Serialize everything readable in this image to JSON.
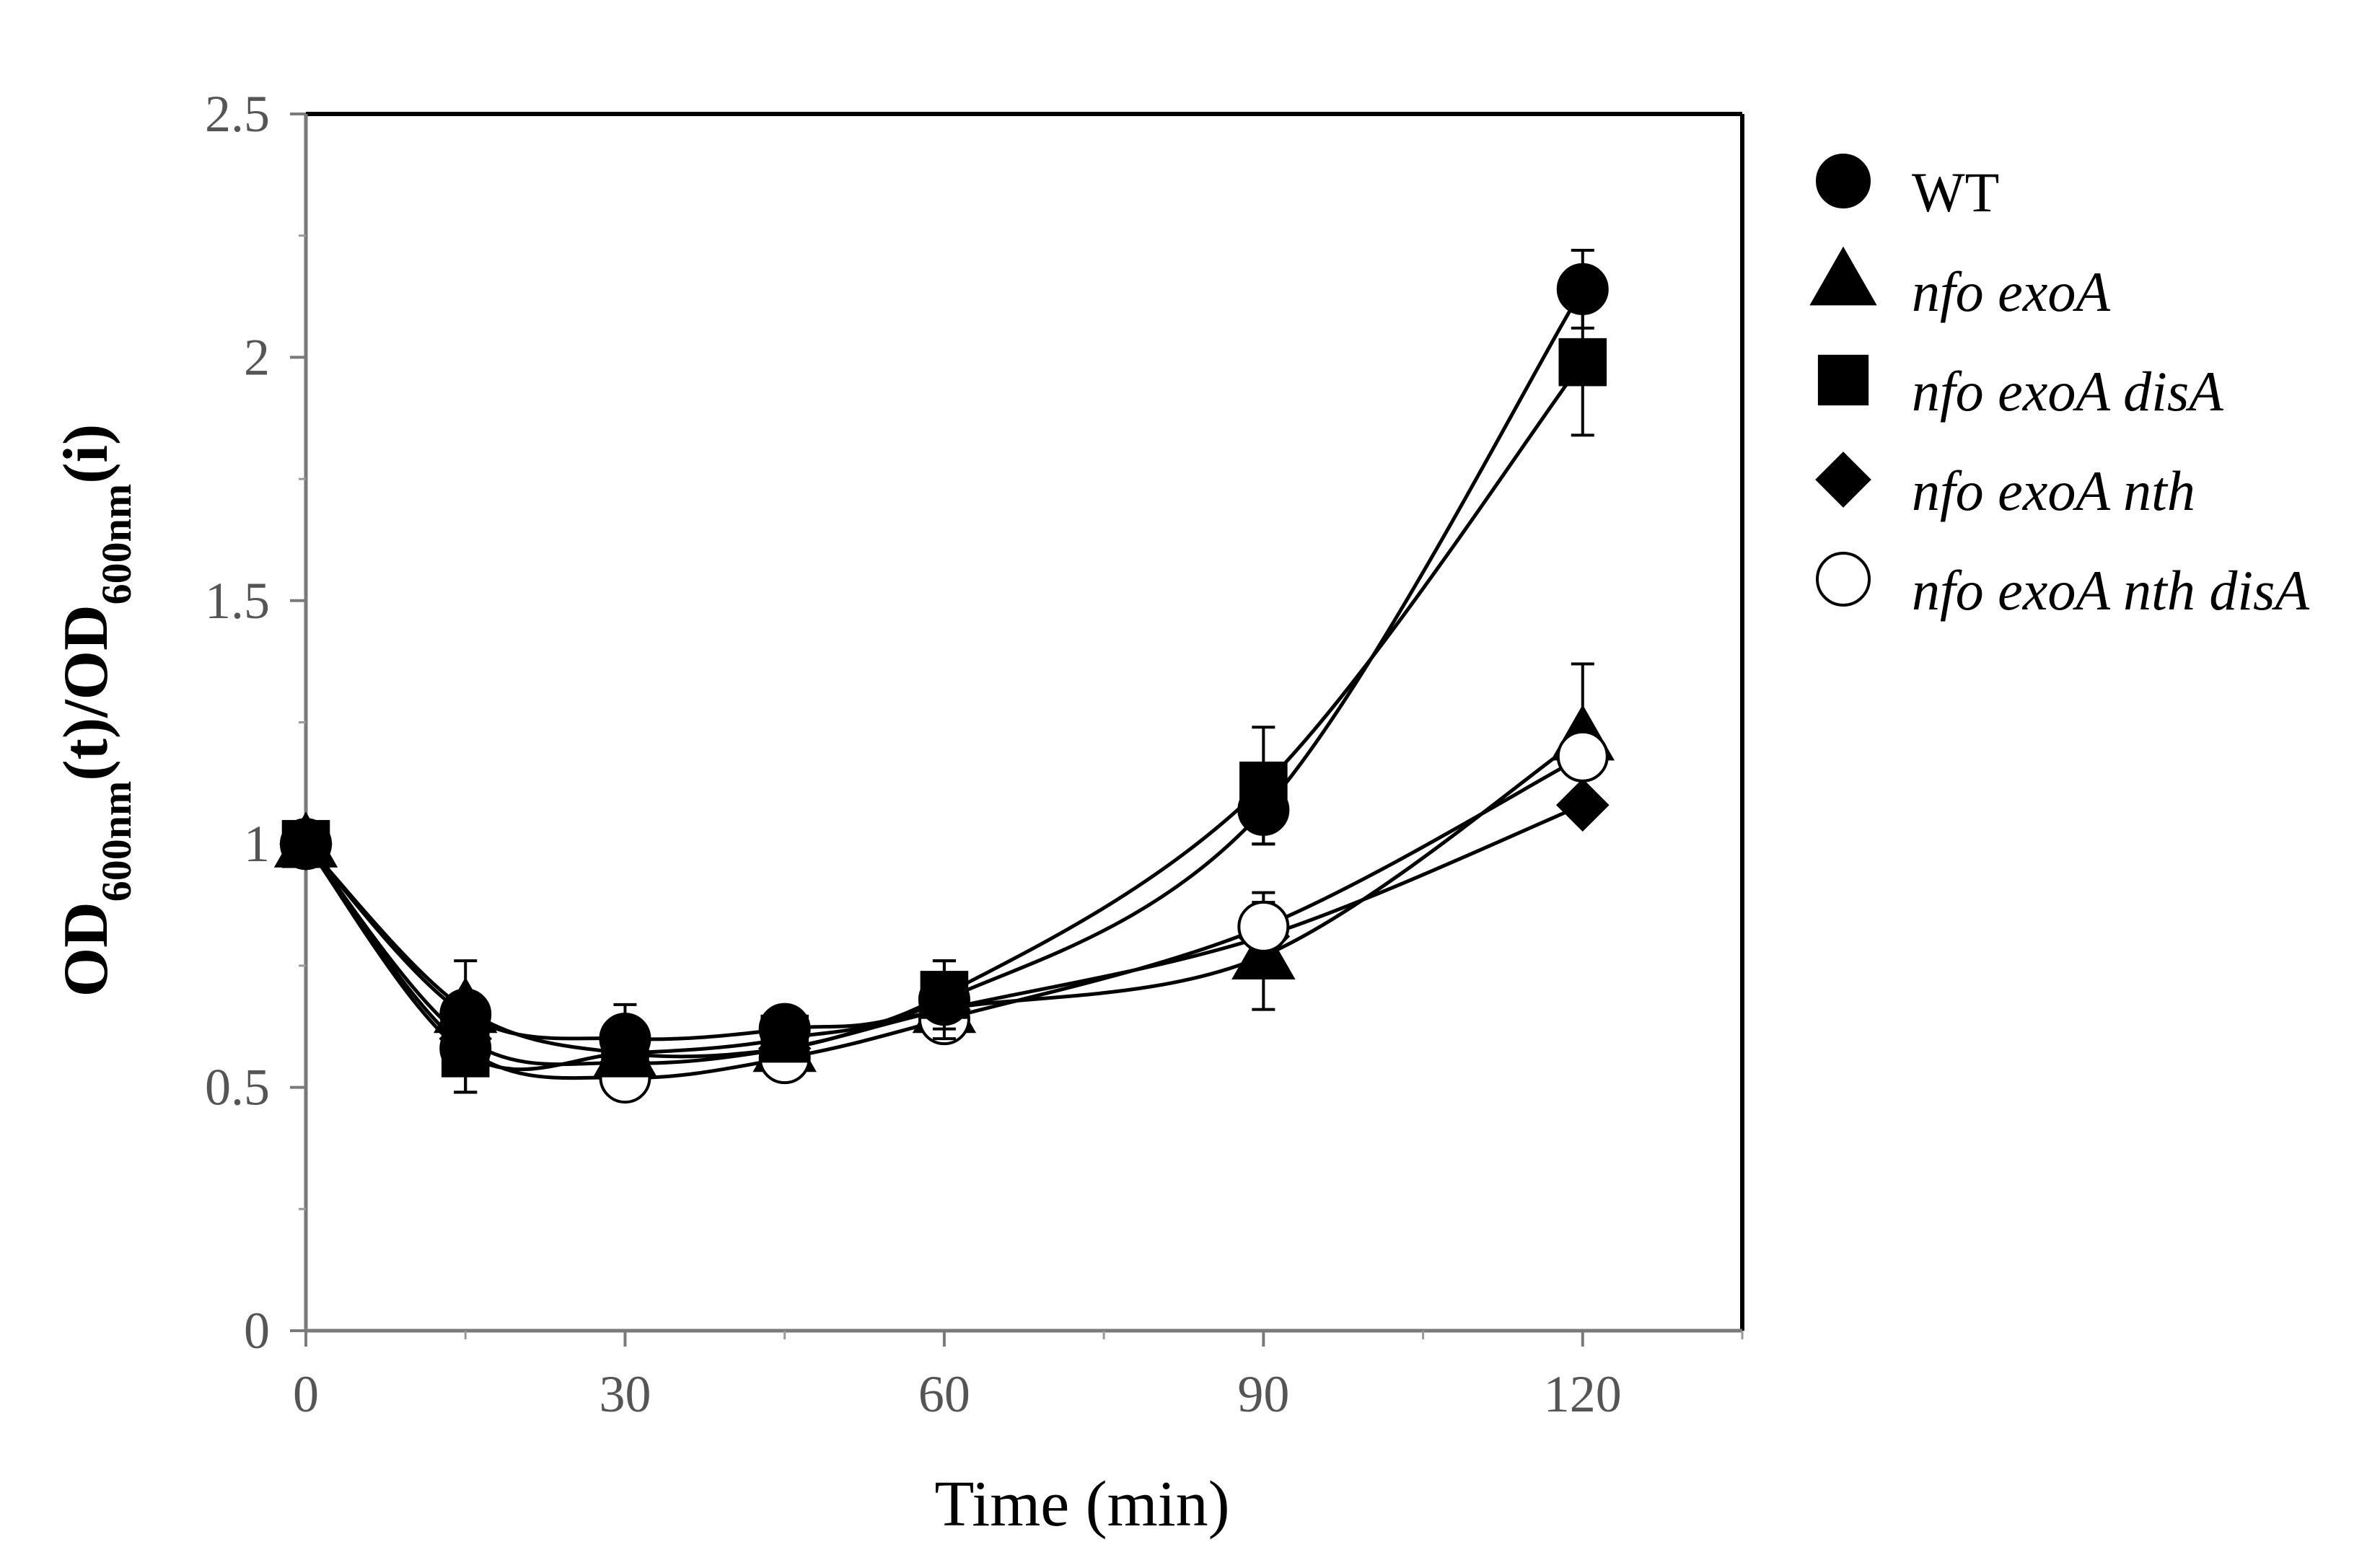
{
  "chart_data": {
    "type": "line",
    "title": "",
    "xlabel": "Time (min)",
    "ylabel": {
      "parts": [
        {
          "text": "OD",
          "sub": false
        },
        {
          "text": "600nm",
          "sub": true
        },
        {
          "text": "(t)/OD",
          "sub": false
        },
        {
          "text": "600nm",
          "sub": true
        },
        {
          "text": "(i)",
          "sub": false
        }
      ]
    },
    "xlim": [
      0,
      135
    ],
    "ylim": [
      0,
      2.5
    ],
    "xticks": [
      0,
      30,
      60,
      90,
      120
    ],
    "xticks_minor": [
      15,
      45,
      75,
      105,
      135
    ],
    "yticks": [
      0,
      0.5,
      1,
      1.5,
      2,
      2.5
    ],
    "ytick_labels": [
      "0",
      "0.5",
      "1",
      "1.5",
      "2",
      "2.5"
    ],
    "yticks_minor": [
      0.25,
      0.75,
      1.25,
      1.75,
      2.25
    ],
    "grid": false,
    "legend_position": "right",
    "x": [
      0,
      15,
      30,
      45,
      60,
      90,
      120
    ],
    "series": [
      {
        "name": "nfo exoA",
        "italic": true,
        "marker": "triangle",
        "fill": "#000000",
        "values": [
          1.0,
          0.66,
          0.57,
          0.58,
          0.66,
          0.77,
          1.22
        ],
        "errors": [
          0,
          0.03,
          0.02,
          0.02,
          0.02,
          0.11,
          0.15
        ]
      },
      {
        "name": "nfo exoA nth",
        "italic": true,
        "marker": "diamond",
        "fill": "#000000",
        "values": [
          1.0,
          0.6,
          0.55,
          0.58,
          0.66,
          0.81,
          1.08
        ],
        "errors": [
          0,
          0.03,
          0.02,
          0.02,
          0.02,
          0.03,
          0.02
        ]
      },
      {
        "name": "nfo exoA nth disA",
        "italic": true,
        "marker": "circle",
        "fill": "#ffffff",
        "values": [
          1.0,
          0.58,
          0.52,
          0.56,
          0.64,
          0.83,
          1.18
        ],
        "errors": [
          0,
          0.09,
          0.03,
          0.02,
          0.02,
          0.07,
          0.04
        ]
      },
      {
        "name": "nfo exoA disA",
        "italic": true,
        "marker": "square",
        "fill": "#000000",
        "values": [
          1.0,
          0.57,
          0.57,
          0.6,
          0.69,
          1.12,
          1.99
        ],
        "errors": [
          0,
          0.08,
          0.04,
          0.03,
          0.07,
          0.12,
          0.15
        ]
      },
      {
        "name": "WT",
        "italic": false,
        "marker": "circle",
        "fill": "#000000",
        "values": [
          1.0,
          0.65,
          0.6,
          0.62,
          0.68,
          1.07,
          2.14
        ],
        "errors": [
          0,
          0.11,
          0.07,
          0.03,
          0.08,
          0.07,
          0.08
        ]
      }
    ],
    "legend_order": [
      "WT",
      "nfo exoA",
      "nfo exoA disA",
      "nfo exoA nth",
      "nfo exoA nth disA"
    ]
  }
}
